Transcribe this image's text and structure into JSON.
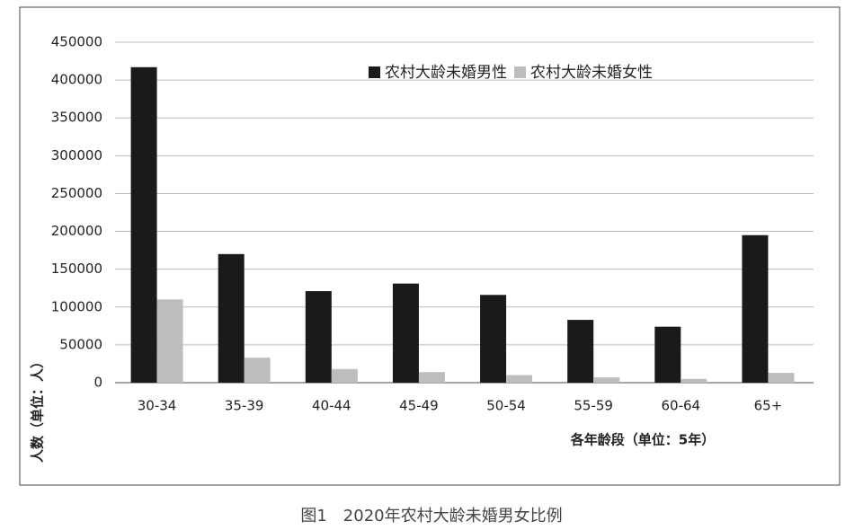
{
  "chart_data": {
    "type": "bar",
    "caption": "图1　2020年农村大龄未婚男女比例",
    "x_label": "各年龄段（单位：5年）",
    "y_label": "人数（单位：人）",
    "categories": [
      "30-34",
      "35-39",
      "40-44",
      "45-49",
      "50-54",
      "55-59",
      "60-64",
      "65+"
    ],
    "series": [
      {
        "name": "农村大龄未婚男性",
        "color": "#1a1a1a",
        "values": [
          417000,
          170000,
          121000,
          131000,
          116000,
          83000,
          74000,
          195000
        ]
      },
      {
        "name": "农村大龄未婚女性",
        "color": "#bdbdbd",
        "values": [
          110000,
          33000,
          18000,
          14000,
          10000,
          7000,
          5000,
          13000
        ]
      }
    ],
    "ylim": [
      0,
      450000
    ],
    "yticks": [
      0,
      50000,
      100000,
      150000,
      200000,
      250000,
      300000,
      350000,
      400000,
      450000
    ],
    "grid": true,
    "legend": "top-right"
  }
}
